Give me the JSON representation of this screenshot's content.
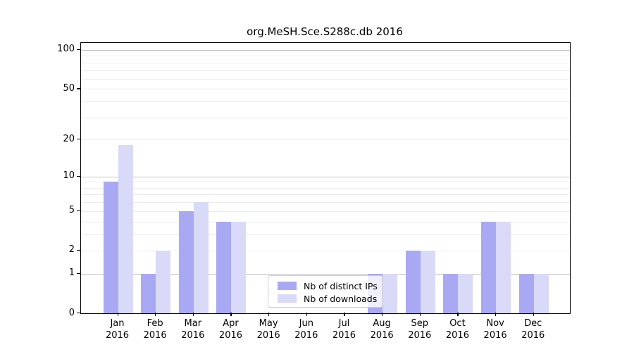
{
  "chart_data": {
    "type": "bar",
    "title": "org.MeSH.Sce.S288c.db 2016",
    "categories": [
      "Jan",
      "Feb",
      "Mar",
      "Apr",
      "May",
      "Jun",
      "Jul",
      "Aug",
      "Sep",
      "Oct",
      "Nov",
      "Dec"
    ],
    "category_year": "2016",
    "series": [
      {
        "name": "Nb of distinct IPs",
        "color": "#a9a9f3",
        "values": [
          9,
          1,
          5,
          4,
          0,
          0,
          0,
          1,
          2,
          1,
          4,
          1
        ]
      },
      {
        "name": "Nb of downloads",
        "color": "#d9d9f8",
        "values": [
          18,
          2,
          6,
          4,
          0,
          0,
          0,
          1,
          2,
          1,
          4,
          1
        ]
      }
    ],
    "y_scale": "log1p",
    "y_tick_labels": [
      0,
      1,
      2,
      5,
      10,
      20,
      50,
      100
    ],
    "y_major_gridlines": [
      1,
      10,
      100
    ],
    "y_minor_gridlines": [
      2,
      3,
      4,
      5,
      6,
      7,
      8,
      9,
      20,
      30,
      40,
      50,
      60,
      70,
      80,
      90
    ],
    "ylim": [
      0,
      113
    ],
    "grid": "on",
    "legend_position": "lower center",
    "colors": {
      "major_grid": "#c3c3c3",
      "minor_grid": "#ebebeb",
      "axis": "#000000",
      "background": "#ffffff"
    }
  }
}
